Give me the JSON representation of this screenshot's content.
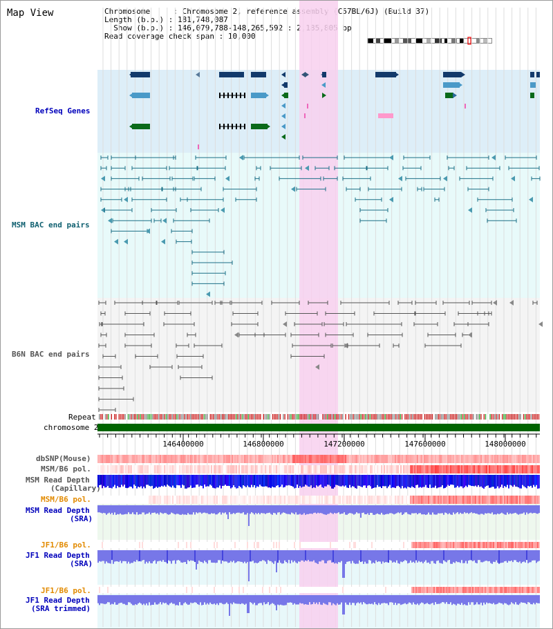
{
  "view": {
    "title": "Map View",
    "meta": {
      "chromosome_key": "Chromosome",
      "chromosome_value": "Chromosome 2, reference assembly (C57BL/6J) (Build 37)",
      "length_key": "Length (b.p.)",
      "length_value": "181,748,087",
      "show_key": "Show (b.p.)",
      "show_value": "146,079,788-148,265,592 : 2,185,805 bp",
      "coverage_key": "Read coverage check span",
      "coverage_value": "10,000"
    }
  },
  "tracks": {
    "refseq": "RefSeq Genes",
    "msm_bac": "MSM BAC end pairs",
    "b6n_bac": "B6N BAC end pairs",
    "repeat": "Repeat",
    "chromosome": "chromosome 2",
    "dbsnp": "dbSNP(Mouse)",
    "msm_b6_pol_1": "MSM/B6 pol.",
    "msm_depth_cap_1": "MSM Read Depth",
    "msm_depth_cap_2": "(Capillary)",
    "msm_b6_pol_2": "MSM/B6 pol.",
    "msm_depth_sra_1": "MSM Read Depth",
    "msm_depth_sra_2": "(SRA)",
    "jf1_b6_pol_1": "JF1/B6 pol.",
    "jf1_depth_sra_1": "JF1 Read Depth",
    "jf1_depth_sra_2": "(SRA)",
    "jf1_b6_pol_2": "JF1/B6 pol.",
    "jf1_depth_trim_1": "JF1 Read Depth",
    "jf1_depth_trim_2": "(SRA trimmed)"
  },
  "axis": {
    "ticks": [
      "146400000",
      "146800000",
      "147200000",
      "147600000",
      "148000000"
    ]
  },
  "colors": {
    "refseq_bg": "#ddeef8",
    "msm_bg": "#e8fafa",
    "b6n_bg": "#f4f4f4",
    "highlight": "#f8d0ee",
    "chromosome": "#006400",
    "msm_depth": "#0000ee",
    "jf1_depth": "#7070ee",
    "pol_red": "#ee4444"
  }
}
